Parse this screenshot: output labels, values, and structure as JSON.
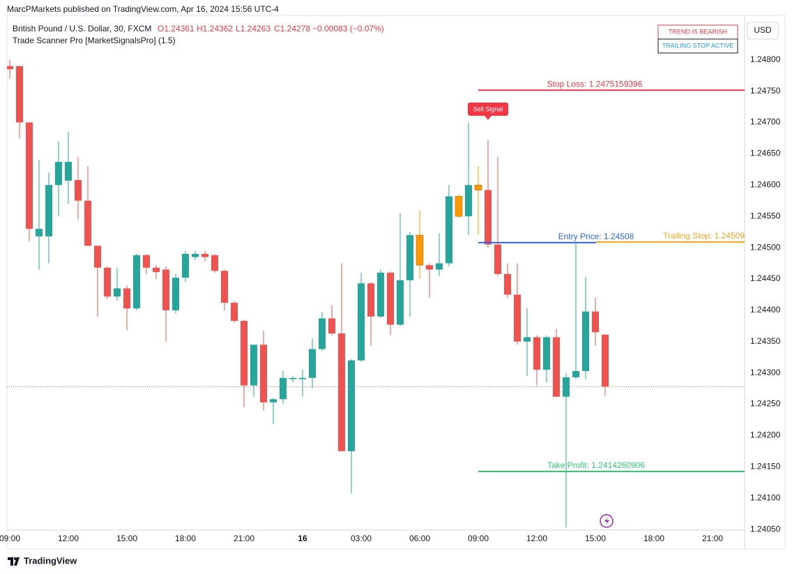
{
  "header": {
    "publisher": "MarcPMarkets published on TradingView.com, Apr 16, 2024 15:56 UTC-4",
    "symbol": "British Pound / U.S. Dollar, 30, FXCM",
    "ohlc": [
      "O1.24361",
      "H1.24362",
      "L1.24263",
      "C1.24278",
      "−0.00083 (−0.07%)"
    ],
    "indicator": "Trade Scanner Pro [MarketSignalsPro] (1.5)",
    "currency": "USD",
    "status": [
      "TREND IS BEARISH",
      "TRAILING STOP ACTIVE"
    ],
    "footer": "TradingView"
  },
  "chart_data": {
    "type": "candlestick",
    "x": [
      0,
      0.5,
      1,
      1.5,
      2,
      2.5,
      3,
      3.5,
      4,
      4.5,
      5,
      5.5,
      6,
      6.5,
      7,
      7.5,
      8,
      8.5,
      9,
      9.5,
      10,
      10.5,
      11,
      11.5,
      12,
      12.5,
      13,
      13.5,
      14,
      14.5,
      15,
      15.5,
      16,
      16.5,
      17,
      17.5,
      18,
      18.5,
      19,
      19.5,
      20,
      20.5,
      21,
      21.5,
      22,
      22.5,
      23,
      23.5,
      24,
      24.5,
      25,
      25.5,
      26,
      26.5,
      27,
      27.5,
      28,
      28.5,
      29,
      29.5,
      30,
      30.5
    ],
    "open": [
      1.2479,
      1.2479,
      1.247,
      1.24518,
      1.24518,
      1.246,
      1.24607,
      1.24608,
      1.24575,
      1.24503,
      1.24468,
      1.24422,
      1.24435,
      1.24403,
      1.24488,
      1.24468,
      1.24465,
      1.244,
      1.24452,
      1.24485,
      1.2449,
      1.24488,
      1.24463,
      1.24412,
      1.24383,
      1.2428,
      1.24345,
      1.24253,
      1.24258,
      1.2429,
      1.2429,
      1.24292,
      1.24338,
      1.24387,
      1.24363,
      1.24175,
      1.2432,
      1.24443,
      1.2439,
      1.2446,
      1.24377,
      1.24448,
      1.2452,
      1.24472,
      1.24465,
      1.24475,
      1.24582,
      1.2455,
      1.246,
      1.24592,
      1.24505,
      1.24458,
      1.24425,
      1.2435,
      1.24357,
      1.24305,
      1.24357,
      1.24262,
      1.24293,
      1.24303,
      1.24398,
      1.24361
    ],
    "high": [
      1.248,
      1.2479,
      1.247,
      1.2464,
      1.2462,
      1.2467,
      1.24685,
      1.24645,
      1.2463,
      1.24503,
      1.2447,
      1.24468,
      1.2444,
      1.2449,
      1.2449,
      1.24472,
      1.2447,
      1.24458,
      1.24495,
      1.24495,
      1.24495,
      1.2449,
      1.24465,
      1.24415,
      1.24385,
      1.24345,
      1.24367,
      1.2426,
      1.24303,
      1.24295,
      1.24305,
      1.24355,
      1.24397,
      1.24408,
      1.24475,
      1.24322,
      1.2446,
      1.24445,
      1.24465,
      1.24462,
      1.24555,
      1.24525,
      1.2456,
      1.24475,
      1.24523,
      1.246,
      1.24585,
      1.247,
      1.2463,
      1.24672,
      1.24645,
      1.24475,
      1.24475,
      1.24403,
      1.2436,
      1.2436,
      1.2437,
      1.243,
      1.24507,
      1.24453,
      1.2442,
      1.24362
    ],
    "low": [
      1.2477,
      1.24675,
      1.2451,
      1.24465,
      1.24475,
      1.2455,
      1.2457,
      1.24545,
      1.24503,
      1.2439,
      1.24418,
      1.24415,
      1.24368,
      1.244,
      1.24458,
      1.2445,
      1.2435,
      1.24395,
      1.24445,
      1.2448,
      1.24478,
      1.2446,
      1.244,
      1.2438,
      1.24245,
      1.24262,
      1.2424,
      1.24218,
      1.2425,
      1.24285,
      1.24262,
      1.24275,
      1.24335,
      1.2436,
      1.24175,
      1.24108,
      1.24318,
      1.24343,
      1.24388,
      1.2436,
      1.24375,
      1.2439,
      1.2445,
      1.2442,
      1.24455,
      1.2447,
      1.24548,
      1.2452,
      1.2452,
      1.245,
      1.24455,
      1.2442,
      1.24345,
      1.24295,
      1.2428,
      1.24285,
      1.24262,
      1.24053,
      1.2429,
      1.2429,
      1.24343,
      1.24263
    ],
    "close": [
      1.24785,
      1.247,
      1.2453,
      1.2453,
      1.246,
      1.24637,
      1.24637,
      1.24575,
      1.24503,
      1.24468,
      1.24422,
      1.24435,
      1.24403,
      1.24488,
      1.24468,
      1.24461,
      1.244,
      1.24452,
      1.2449,
      1.2449,
      1.24485,
      1.24463,
      1.24412,
      1.24383,
      1.2428,
      1.24345,
      1.24253,
      1.24258,
      1.24292,
      1.24292,
      1.24292,
      1.24338,
      1.24387,
      1.24363,
      1.24175,
      1.2432,
      1.24443,
      1.2439,
      1.2446,
      1.24377,
      1.24448,
      1.2452,
      1.24472,
      1.24465,
      1.24475,
      1.24582,
      1.2455,
      1.246,
      1.24592,
      1.24505,
      1.24458,
      1.24425,
      1.2435,
      1.24357,
      1.24305,
      1.24357,
      1.24262,
      1.24293,
      1.24303,
      1.24398,
      1.24365,
      1.24278
    ],
    "colors": [
      "#ef5350",
      "#ef5350",
      "#ef5350",
      "#26a69a",
      "#26a69a",
      "#26a69a",
      "#26a69a",
      "#ef5350",
      "#ef5350",
      "#ef5350",
      "#ef5350",
      "#26a69a",
      "#ef5350",
      "#26a69a",
      "#ef5350",
      "#ef5350",
      "#ef5350",
      "#26a69a",
      "#26a69a",
      "#26a69a",
      "#ef5350",
      "#ef5350",
      "#ef5350",
      "#ef5350",
      "#ef5350",
      "#26a69a",
      "#ef5350",
      "#26a69a",
      "#26a69a",
      "#26a69a",
      "#26a69a",
      "#26a69a",
      "#26a69a",
      "#ef5350",
      "#ef5350",
      "#26a69a",
      "#26a69a",
      "#ef5350",
      "#26a69a",
      "#ef5350",
      "#26a69a",
      "#26a69a",
      "#ff9800",
      "#ef5350",
      "#26a69a",
      "#26a69a",
      "#ff9800",
      "#26a69a",
      "#ff9800",
      "#ef5350",
      "#ef5350",
      "#ef5350",
      "#ef5350",
      "#26a69a",
      "#ef5350",
      "#26a69a",
      "#ef5350",
      "#26a69a",
      "#26a69a",
      "#26a69a",
      "#ef5350",
      "#ef5350"
    ],
    "xlim": [
      -0.143,
      37.643
    ],
    "xticks": [
      {
        "value": 0,
        "label": "09:00"
      },
      {
        "value": 3,
        "label": "12:00"
      },
      {
        "value": 6,
        "label": "15:00"
      },
      {
        "value": 9,
        "label": "18:00"
      },
      {
        "value": 12,
        "label": "21:00"
      },
      {
        "value": 15,
        "label": "16"
      },
      {
        "value": 18,
        "label": "03:00"
      },
      {
        "value": 21,
        "label": "06:00"
      },
      {
        "value": 24,
        "label": "09:00"
      },
      {
        "value": 27,
        "label": "12:00"
      },
      {
        "value": 30,
        "label": "15:00"
      },
      {
        "value": 33,
        "label": "18:00"
      },
      {
        "value": 36,
        "label": "21:00"
      }
    ],
    "ylim": [
      1.24049,
      1.24871
    ],
    "yticks": [
      {
        "value": 1.248,
        "label": "1.24800"
      },
      {
        "value": 1.2475,
        "label": "1.24750"
      },
      {
        "value": 1.247,
        "label": "1.24700"
      },
      {
        "value": 1.2465,
        "label": "1.24650"
      },
      {
        "value": 1.246,
        "label": "1.24600"
      },
      {
        "value": 1.2455,
        "label": "1.24550"
      },
      {
        "value": 1.245,
        "label": "1.24500"
      },
      {
        "value": 1.2445,
        "label": "1.24450"
      },
      {
        "value": 1.244,
        "label": "1.24400"
      },
      {
        "value": 1.2435,
        "label": "1.24350"
      },
      {
        "value": 1.243,
        "label": "1.24300"
      },
      {
        "value": 1.2425,
        "label": "1.24250"
      },
      {
        "value": 1.242,
        "label": "1.24200"
      },
      {
        "value": 1.2415,
        "label": "1.24150"
      },
      {
        "value": 1.241,
        "label": "1.24100"
      },
      {
        "value": 1.2405,
        "label": "1.24050"
      }
    ],
    "grid": false,
    "levels": [
      {
        "label": "Stop Loss: 1.2475159396",
        "value": 1.2475159396,
        "color": "#f23645"
      },
      {
        "label": "Entry Price: 1.24508",
        "value": 1.24508,
        "color": "#2962ff"
      },
      {
        "label": "Trailing Stop: 1.24509",
        "value": 1.24509,
        "color": "#f5a623"
      },
      {
        "label": "Take Profit: 1.2414260906",
        "value": 1.2414260906,
        "color": "#2ecc71"
      }
    ],
    "annotation": "Sell Signal"
  }
}
